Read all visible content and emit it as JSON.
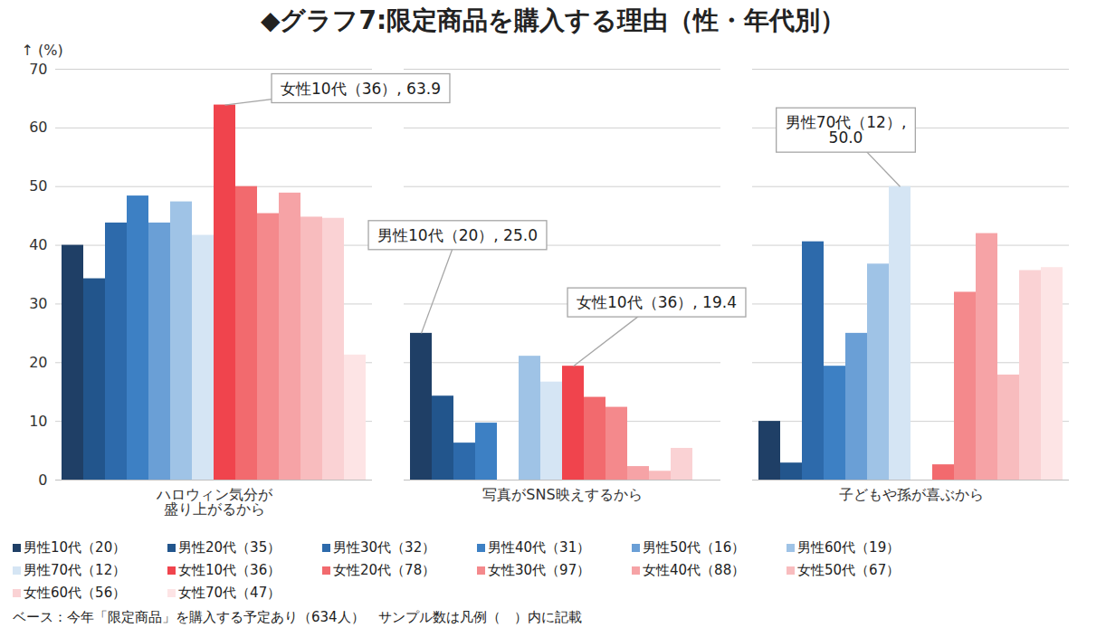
{
  "chart_data": {
    "type": "bar",
    "title": "◆グラフ7:限定商品を購入する理由（性・年代別）",
    "y_label": "(%)",
    "categories": [
      "ハロウィン気分が\n盛り上がるから",
      "写真がSNS映えするから",
      "子どもや孫が喜ぶから"
    ],
    "series": [
      {
        "name": "男性10代（20）",
        "color": "#1f3f66",
        "values": [
          40.0,
          25.0,
          10.0
        ]
      },
      {
        "name": "男性20代（35）",
        "color": "#22558c",
        "values": [
          34.3,
          14.3,
          2.9
        ]
      },
      {
        "name": "男性30代（32）",
        "color": "#2d6aab",
        "values": [
          43.8,
          6.3,
          40.6
        ]
      },
      {
        "name": "男性40代（31）",
        "color": "#3d80c4",
        "values": [
          48.4,
          9.7,
          19.4
        ]
      },
      {
        "name": "男性50代（16）",
        "color": "#6a9fd6",
        "values": [
          43.8,
          0,
          25.0
        ]
      },
      {
        "name": "男性60代（19）",
        "color": "#9fc3e6",
        "values": [
          47.4,
          21.1,
          36.8
        ]
      },
      {
        "name": "男性70代（12）",
        "color": "#d5e5f4",
        "values": [
          41.7,
          16.7,
          50.0
        ]
      },
      {
        "name": "女性10代（36）",
        "color": "#f0444d",
        "values": [
          63.9,
          19.4,
          0
        ]
      },
      {
        "name": "女性20代（78）",
        "color": "#f26a6e",
        "values": [
          50.0,
          14.1,
          2.6
        ]
      },
      {
        "name": "女性30代（97）",
        "color": "#f4898c",
        "values": [
          45.4,
          12.4,
          32.0
        ]
      },
      {
        "name": "女性40代（88）",
        "color": "#f6a3a6",
        "values": [
          48.9,
          2.3,
          42.0
        ]
      },
      {
        "name": "女性50代（67）",
        "color": "#f8bcbe",
        "values": [
          44.8,
          1.5,
          17.9
        ]
      },
      {
        "name": "女性60代（56）",
        "color": "#fad2d4",
        "values": [
          44.6,
          5.4,
          35.7
        ]
      },
      {
        "name": "女性70代（47）",
        "color": "#fde4e5",
        "values": [
          21.3,
          0,
          36.2
        ]
      }
    ],
    "ylim": [
      0,
      70
    ],
    "yticks": [
      0,
      10,
      20,
      30,
      40,
      50,
      60,
      70
    ],
    "grid": true,
    "legend": "bottom",
    "annotations": [
      {
        "category": "ハロウィン気分が\n盛り上がるから",
        "series": "女性10代（36）",
        "text": "女性10代（36）, 63.9"
      },
      {
        "category": "写真がSNS映えするから",
        "series": "男性10代（20）",
        "text": "男性10代（20）, 25.0"
      },
      {
        "category": "写真がSNS映えするから",
        "series": "女性10代（36）",
        "text": "女性10代（36）, 19.4"
      },
      {
        "category": "子どもや孫が喜ぶから",
        "series": "男性70代（12）",
        "text": "男性70代（12）,\n50.0"
      }
    ],
    "note": "ベース：今年「限定商品」を購入する予定あり（634人）　サンプル数は凡例（　）内に記載"
  }
}
